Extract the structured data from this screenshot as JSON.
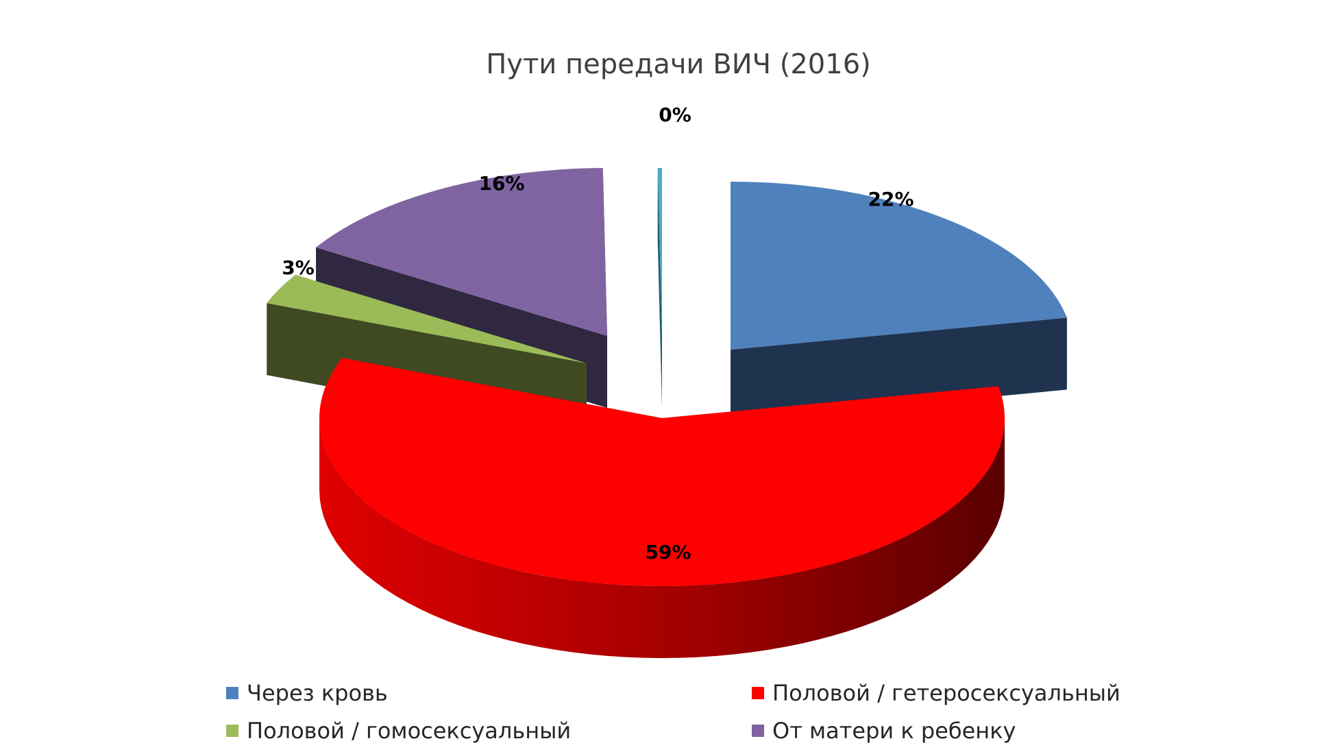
{
  "chart_data": {
    "type": "pie",
    "style": "3d-exploded",
    "title": "Пути передачи ВИЧ (2016)",
    "slices": [
      {
        "name": "Через кровь",
        "value": 22,
        "label": "22%",
        "color": "#4F81BD",
        "side_color": "#1F334F"
      },
      {
        "name": "Половой / гетеросексуальный",
        "value": 59,
        "label": "59%",
        "color": "#FF0000",
        "side_color": "#6B0000"
      },
      {
        "name": "Половой / гомосексуальный",
        "value": 3,
        "label": "3%",
        "color": "#9BBB59",
        "side_color": "#3F4A22"
      },
      {
        "name": "От матери к ребенку",
        "value": 16,
        "label": "16%",
        "color": "#8064A2",
        "side_color": "#2F2840"
      },
      {
        "name": "",
        "value": 0.2,
        "label": "0%",
        "color": "#4BACC6",
        "side_color": "#1E5A6A"
      }
    ],
    "legend": {
      "position": "bottom",
      "entries": [
        {
          "name": "Через кровь",
          "color": "#4F81BD"
        },
        {
          "name": "Половой / гетеросексуальный",
          "color": "#FF0000"
        },
        {
          "name": "Половой / гомосексуальный",
          "color": "#9BBB59"
        },
        {
          "name": "От матери к ребенку",
          "color": "#8064A2"
        }
      ]
    }
  }
}
